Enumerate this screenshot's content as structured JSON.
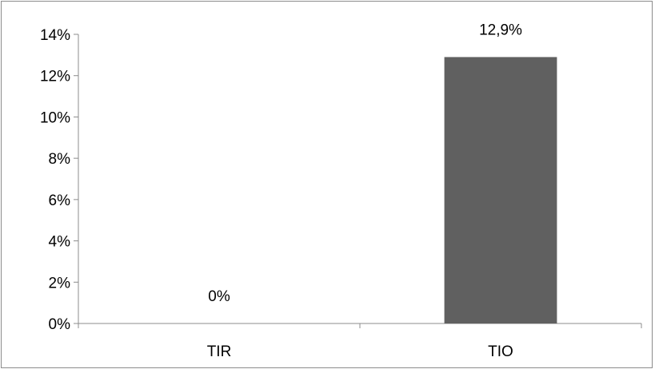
{
  "chart_data": {
    "type": "bar",
    "categories": [
      "TIR",
      "TIO"
    ],
    "values": [
      0,
      12.9
    ],
    "data_labels": [
      "0%",
      "12,9%"
    ],
    "y_tick_labels": [
      "0%",
      "2%",
      "4%",
      "6%",
      "8%",
      "10%",
      "12%",
      "14%"
    ],
    "ylim": [
      0,
      14
    ],
    "y_tick_step": 2,
    "grid": false,
    "legend": "none",
    "colors": {
      "bar": "#606060",
      "axis": "#8c8c8c",
      "frame": "#8c8c8c",
      "text": "#000000"
    }
  }
}
